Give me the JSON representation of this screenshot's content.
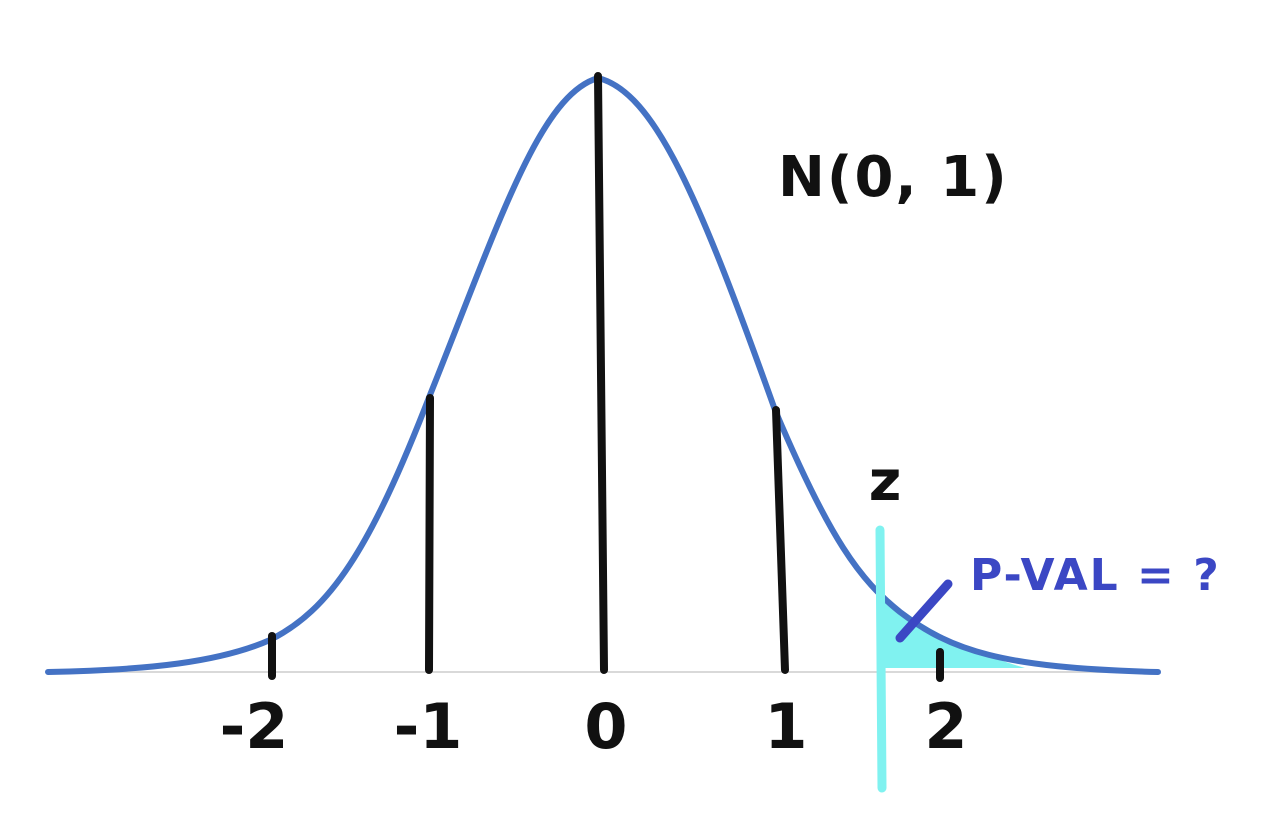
{
  "diagram": {
    "distribution_label": "N(0, 1)",
    "z_label": "z",
    "pvalue_label": "P-VAL = ?",
    "tick_labels": [
      "-2",
      "-1",
      "0",
      "1",
      "2"
    ],
    "z_value": 1.6,
    "colors": {
      "curve": "#4472c4",
      "shade": "#80f2f0",
      "z_line": "#80f2f0",
      "pointer": "#3b47c4",
      "pvalue_text": "#3b47c4",
      "sigma_lines": "#111111",
      "axis": "#d9d9d9"
    }
  }
}
